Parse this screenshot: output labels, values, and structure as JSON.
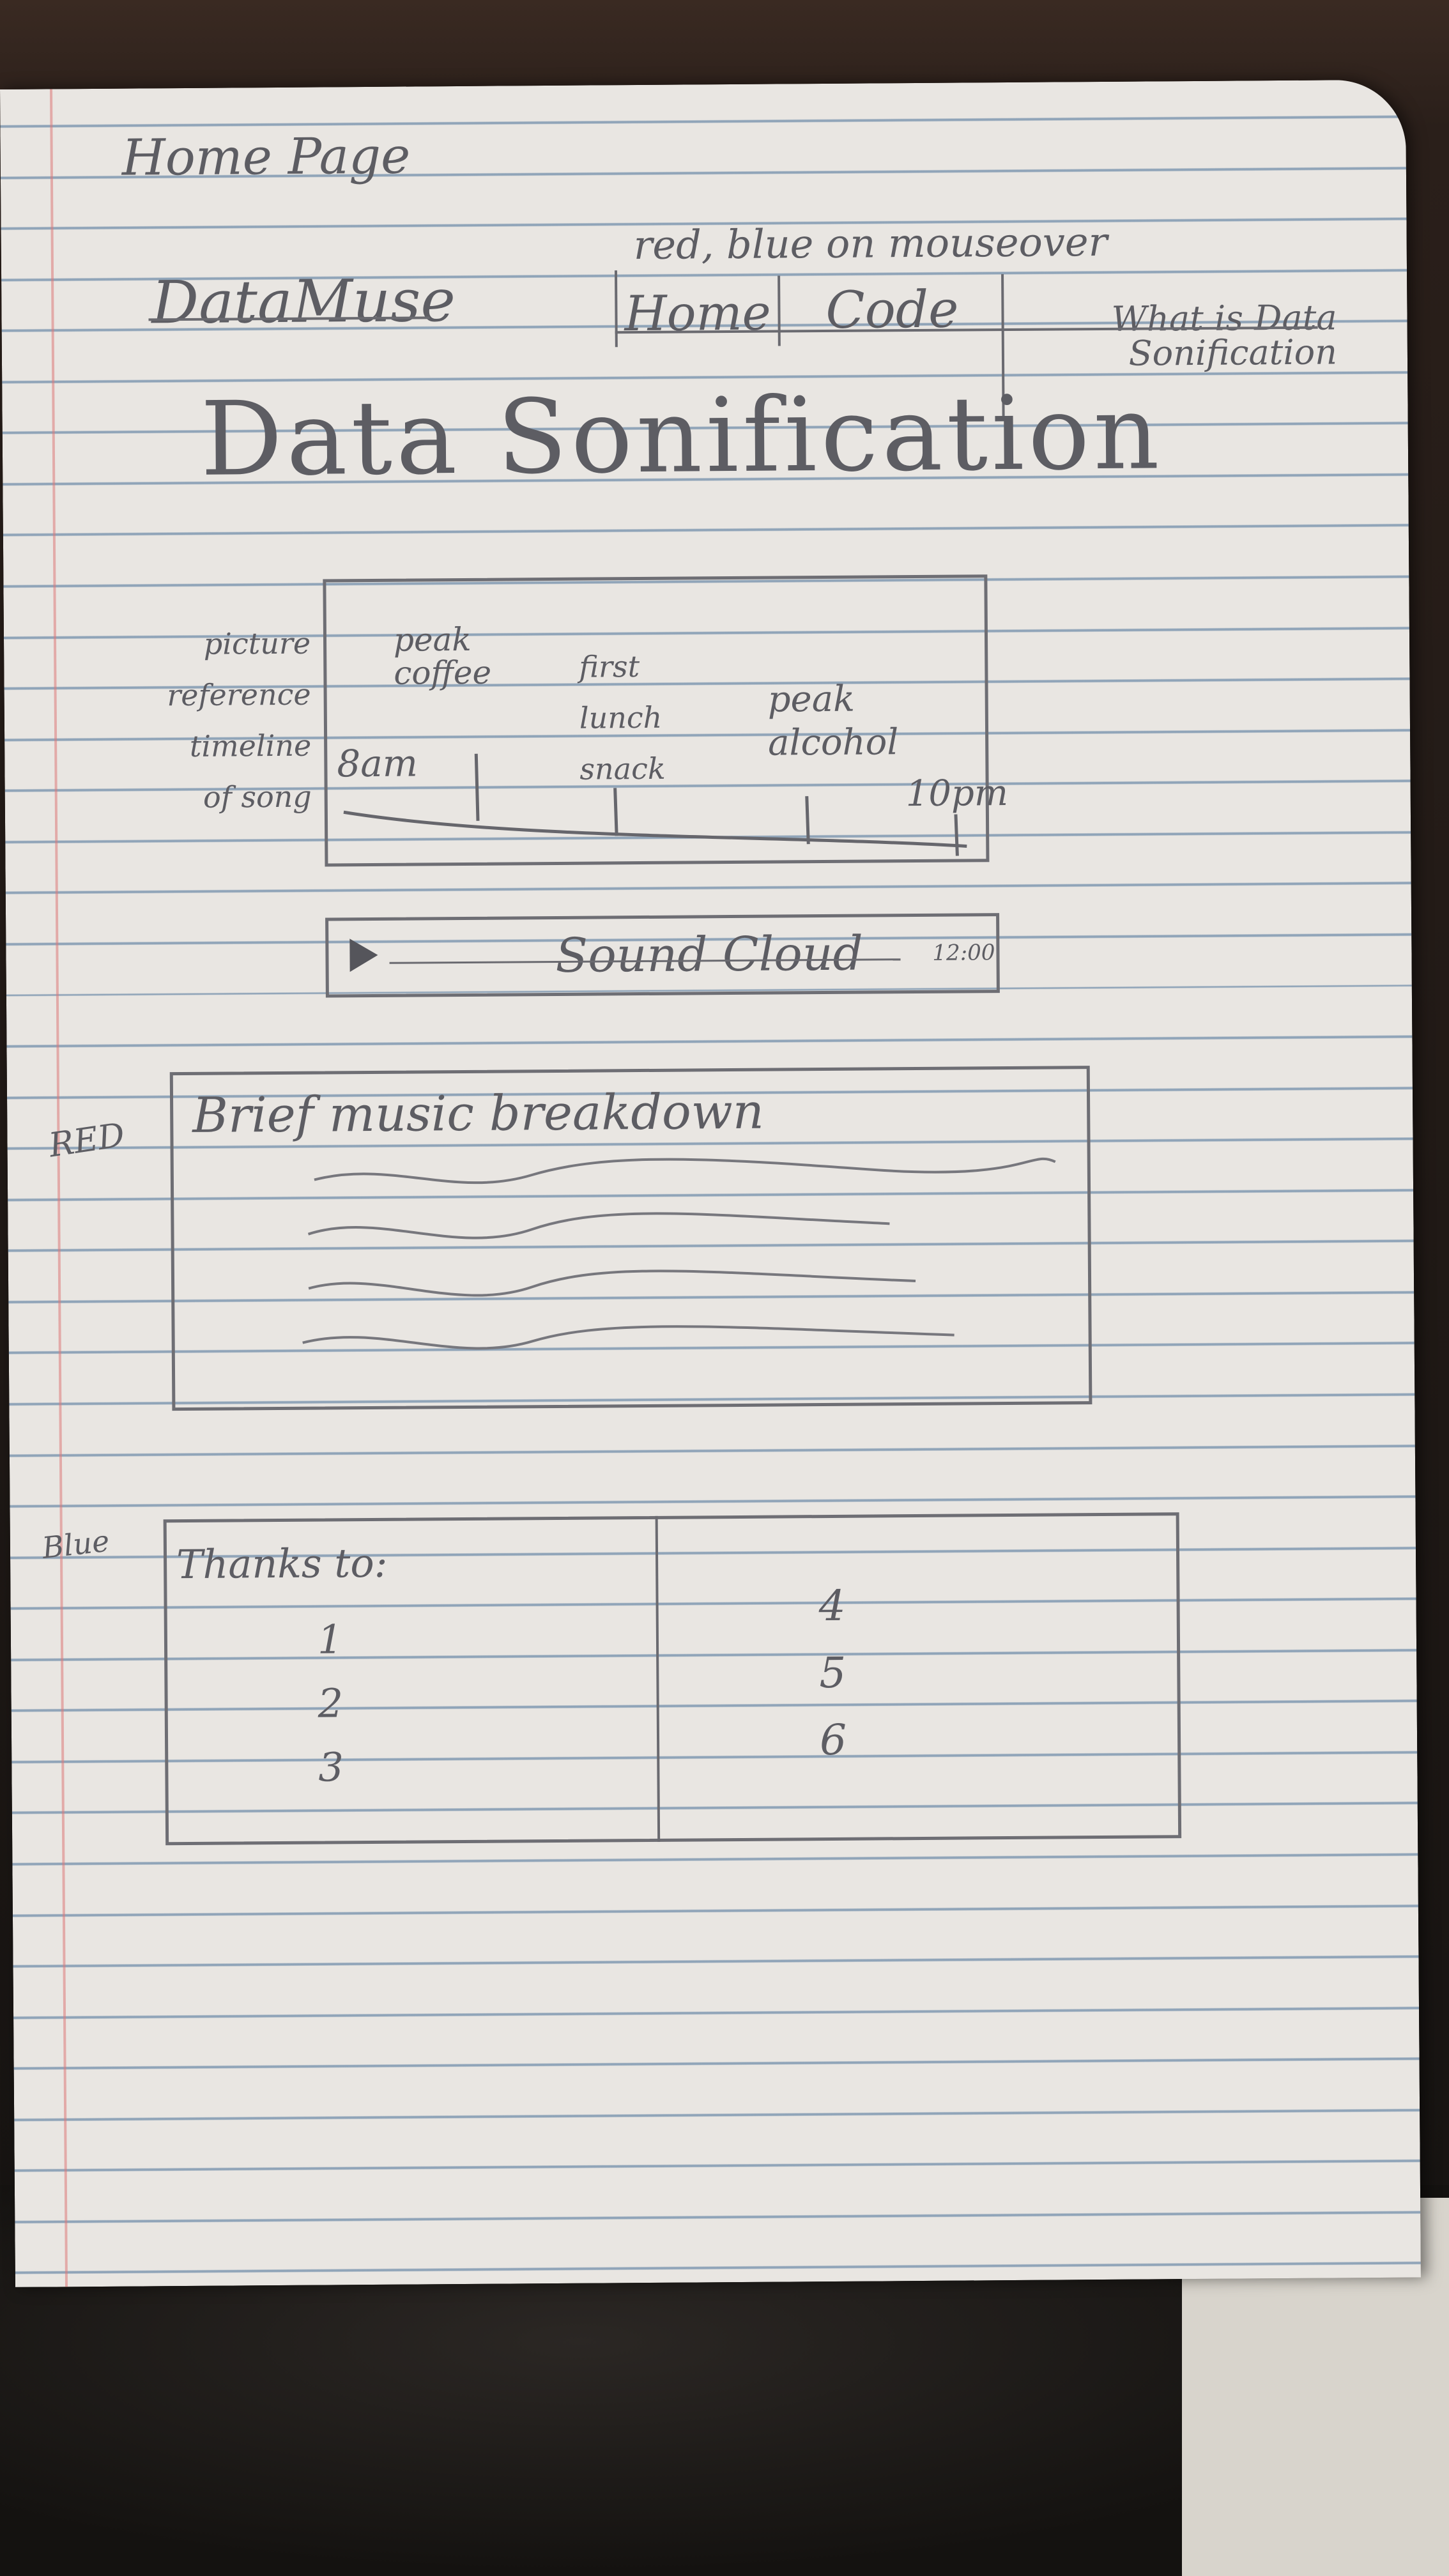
{
  "notes": {
    "page_label": "Home Page",
    "hover_note": "red, blue on mouseover"
  },
  "nav": {
    "brand": "DataMuse",
    "items": [
      "Home",
      "Code",
      "What is Data Sonification"
    ]
  },
  "hero": {
    "title": "Data Sonification"
  },
  "timeline": {
    "side_label_lines": [
      "picture",
      "reference",
      "timeline",
      "of song"
    ],
    "events": [
      "peak coffee",
      "first lunch snack",
      "peak alcohol"
    ],
    "start_label": "8am",
    "end_label": "10pm"
  },
  "player": {
    "name": "Sound Cloud",
    "play_icon": "play-icon",
    "duration": "12:00"
  },
  "breakdown": {
    "color_note": "RED",
    "heading": "Brief music breakdown"
  },
  "thanks": {
    "color_note": "Blue",
    "heading": "Thanks to:",
    "left": [
      "1",
      "2",
      "3"
    ],
    "right": [
      "4",
      "5",
      "6"
    ]
  }
}
